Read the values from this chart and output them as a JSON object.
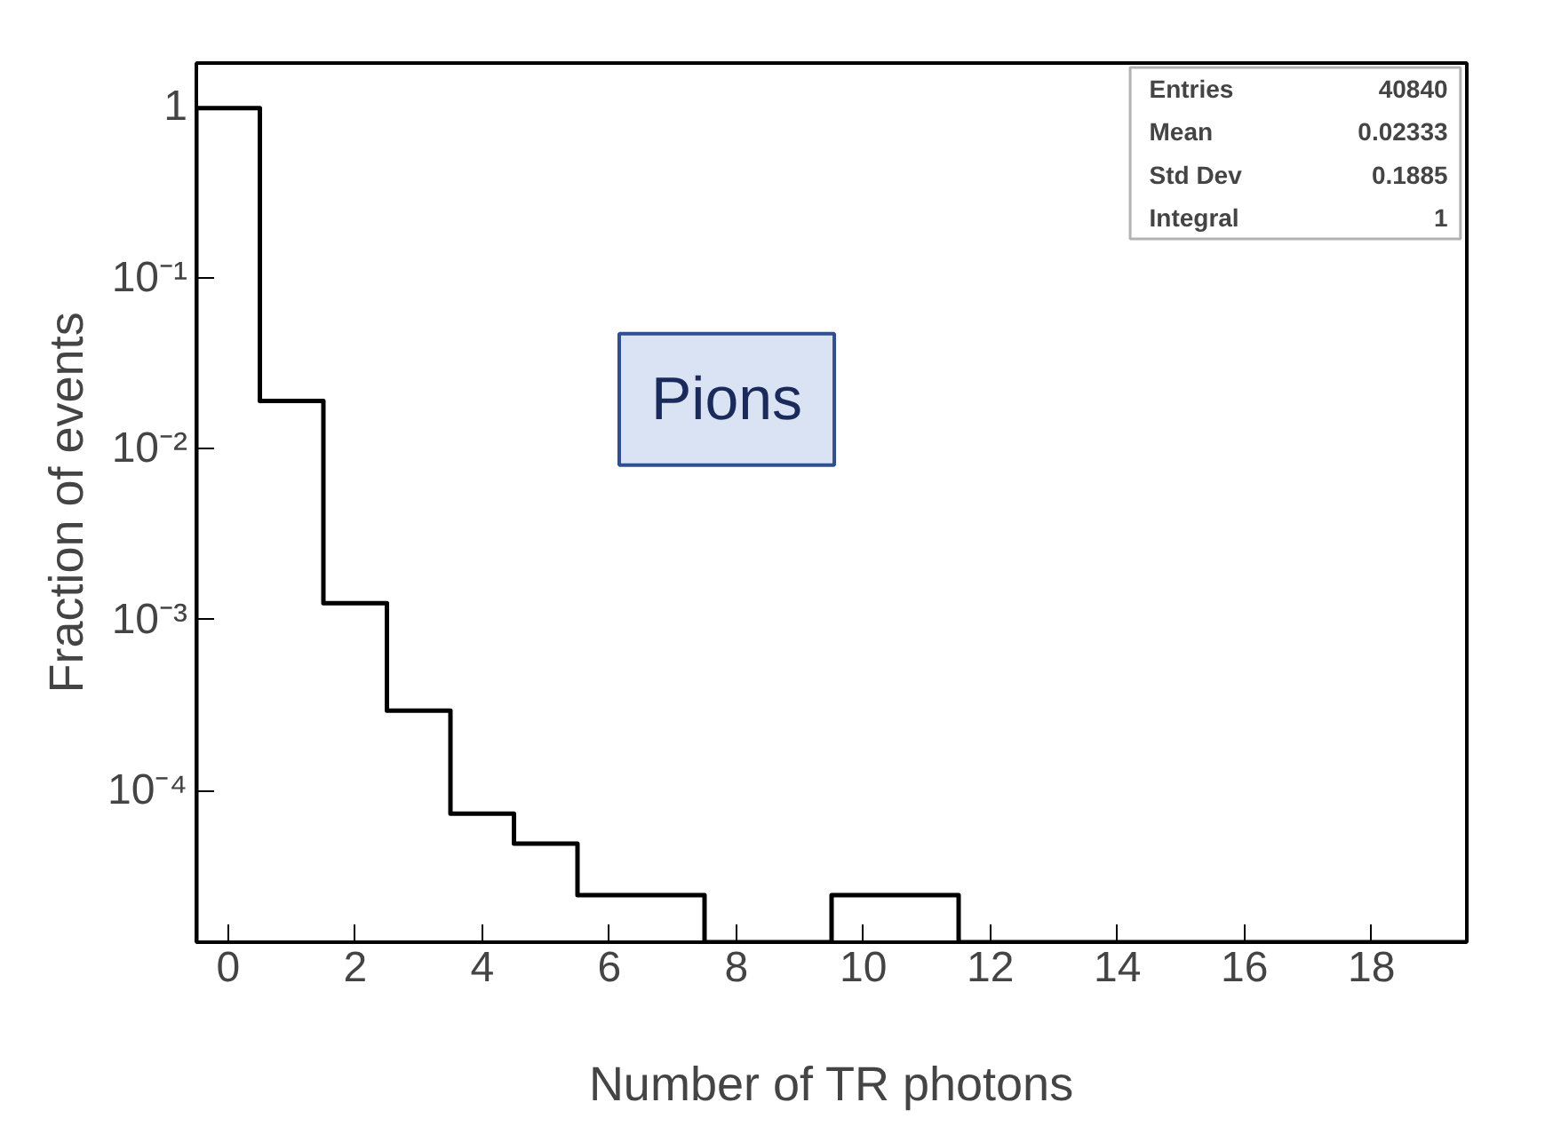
{
  "chart_data": {
    "type": "histogram",
    "xlabel": "Number of TR photons",
    "ylabel": "Fraction of events",
    "bins": [
      -0.5,
      0.5,
      1.5,
      2.5,
      3.5,
      4.5,
      5.5,
      6.5,
      7.5,
      8.5,
      9.5,
      10.5,
      11.5,
      12.5,
      13.5,
      14.5,
      15.5,
      16.5,
      17.5,
      18.5,
      19.5
    ],
    "values": [
      0.98,
      0.019,
      0.00125,
      0.000294,
      7.35e-05,
      4.9e-05,
      2.45e-05,
      2.45e-05,
      null,
      null,
      2.45e-05,
      2.45e-05,
      null,
      null,
      null,
      null,
      null,
      null,
      null,
      null
    ],
    "color": "#000000",
    "log": "y",
    "xlim": [
      -0.5,
      19.5
    ],
    "ylim": [
      1.3e-05,
      1.8
    ],
    "xticks": [
      0,
      2,
      4,
      6,
      8,
      10,
      12,
      14,
      16,
      18
    ],
    "yticks": [
      1,
      {
        "value": 0.1,
        "label": "10⁻¹"
      },
      {
        "value": 0.01,
        "label": "10⁻²"
      },
      {
        "value": 0.001,
        "label": "10⁻³"
      },
      {
        "value": 0.0001,
        "label": "10⁻⁴"
      }
    ],
    "grid": false,
    "annotations": [
      "Pions",
      "Entries",
      "40840",
      "Mean",
      "0.02333",
      "Std Dev",
      "0.1885",
      "Integral",
      "1"
    ]
  }
}
